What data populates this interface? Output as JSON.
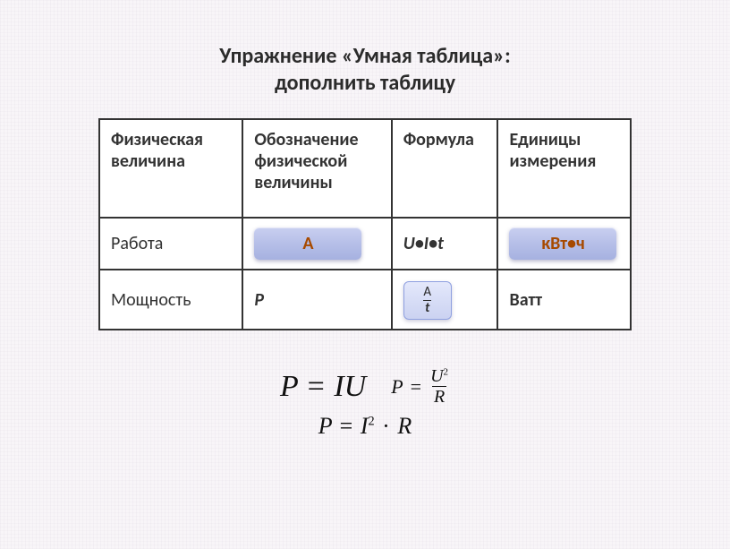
{
  "title_line1": "Упражнение «Умная таблица»:",
  "title_line2": "дополнить таблицу",
  "colors": {
    "text": "#2b2b2b",
    "accent_orange": "#a74a00",
    "pill_bg_top": "#c9cff0",
    "pill_bg_bottom": "#a6b1e0",
    "pill_sm_bg_top": "#e4e8fb",
    "pill_sm_bg_bottom": "#cbd2f1",
    "border": "#333333",
    "page_bg": "#f8f5f8"
  },
  "table": {
    "columns": [
      "Физическая величина",
      "Обозначение физической величины",
      "Формула",
      "Единицы измерения"
    ],
    "rows": [
      {
        "quantity": "Работа",
        "symbol_pill": "A",
        "formula": "U•I•t",
        "unit_pill": "кВт•ч"
      },
      {
        "quantity": "Мощность",
        "symbol": "P",
        "formula_pill": {
          "num": "A",
          "den": "t"
        },
        "unit": "Ватт"
      }
    ]
  },
  "formulas": {
    "f1_lhs": "P",
    "f1_rhs": "IU",
    "f2_lhs": "P",
    "f2_num": "U",
    "f2_num_exp": "2",
    "f2_den": "R",
    "f3_lhs": "P",
    "f3_base": "I",
    "f3_exp": "2",
    "f3_rhs": "R"
  }
}
